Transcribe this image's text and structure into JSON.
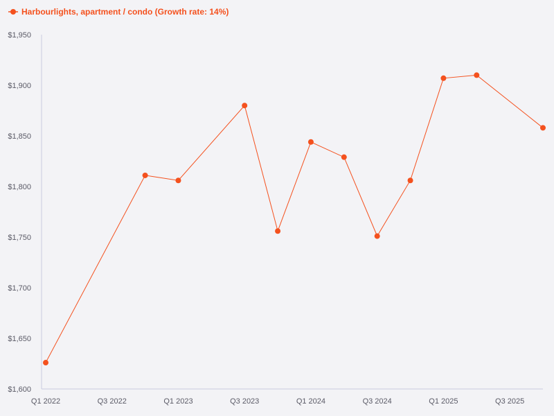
{
  "chart_data": {
    "type": "line",
    "title": "",
    "xlabel": "",
    "ylabel": "",
    "legend": {
      "position": "top-left",
      "entries": [
        "Harbourlights, apartment / condo (Growth rate: 14%)"
      ]
    },
    "grid": false,
    "x": [
      "Q1 2022",
      "Q2 2022",
      "Q3 2022",
      "Q4 2022",
      "Q1 2023",
      "Q2 2023",
      "Q3 2023",
      "Q4 2023",
      "Q1 2024",
      "Q2 2024",
      "Q3 2024",
      "Q4 2024",
      "Q1 2025",
      "Q2 2025",
      "Q3 2025",
      "Q4 2025"
    ],
    "x_tick_labels": [
      "Q1 2022",
      "Q3 2022",
      "Q1 2023",
      "Q3 2023",
      "Q1 2024",
      "Q3 2024",
      "Q1 2025",
      "Q3 2025"
    ],
    "series": [
      {
        "name": "Harbourlights, apartment / condo (Growth rate: 14%)",
        "color": "#f4511e",
        "values": [
          1626,
          null,
          null,
          1811,
          1806,
          null,
          1880,
          1756,
          1844,
          1829,
          1751,
          1806,
          1907,
          1910,
          null,
          1858
        ]
      }
    ],
    "ylim": [
      1600,
      1950
    ],
    "y_ticks": [
      1600,
      1650,
      1700,
      1750,
      1800,
      1850,
      1900,
      1950
    ],
    "y_tick_labels": [
      "$1,600",
      "$1,650",
      "$1,700",
      "$1,750",
      "$1,800",
      "$1,850",
      "$1,900",
      "$1,950"
    ],
    "colors": {
      "series": "#f4511e",
      "axis": "#c9cbe0",
      "tick_text": "#5a5a66",
      "background": "#f3f3f6"
    }
  }
}
